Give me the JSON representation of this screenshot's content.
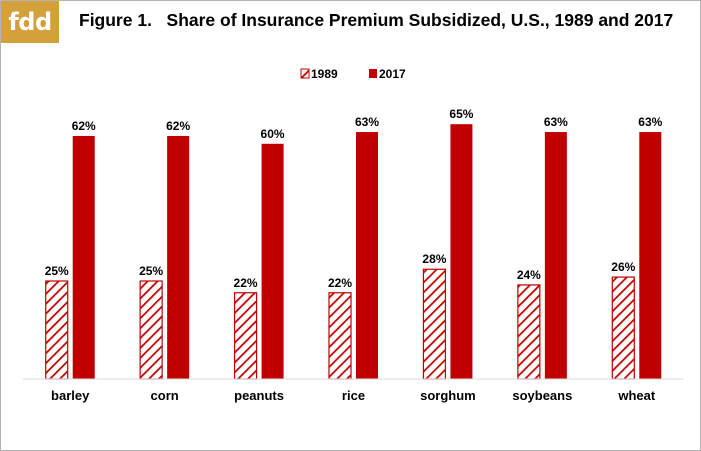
{
  "logo": {
    "text": "fdd",
    "color": "#d4a03a"
  },
  "chart_data": {
    "type": "bar",
    "title": "Figure 1.   Share of Insurance Premium Subsidized, U.S., 1989 and 2017",
    "categories": [
      "barley",
      "corn",
      "peanuts",
      "rice",
      "sorghum",
      "soybeans",
      "wheat"
    ],
    "series": [
      {
        "name": "1989",
        "values": [
          25,
          25,
          22,
          22,
          28,
          24,
          26
        ],
        "labels": [
          "25%",
          "25%",
          "22%",
          "22%",
          "28%",
          "24%",
          "26%"
        ],
        "color": "#c00000",
        "pattern": "diagonal-hatch"
      },
      {
        "name": "2017",
        "values": [
          62,
          62,
          60,
          63,
          65,
          63,
          63
        ],
        "labels": [
          "62%",
          "62%",
          "60%",
          "63%",
          "65%",
          "63%",
          "63%"
        ],
        "color": "#c00000",
        "pattern": "solid"
      }
    ],
    "xlabel": "",
    "ylabel": "",
    "ylim": [
      0,
      70
    ],
    "grid": false,
    "legend": "top-center",
    "data_labels": true
  }
}
